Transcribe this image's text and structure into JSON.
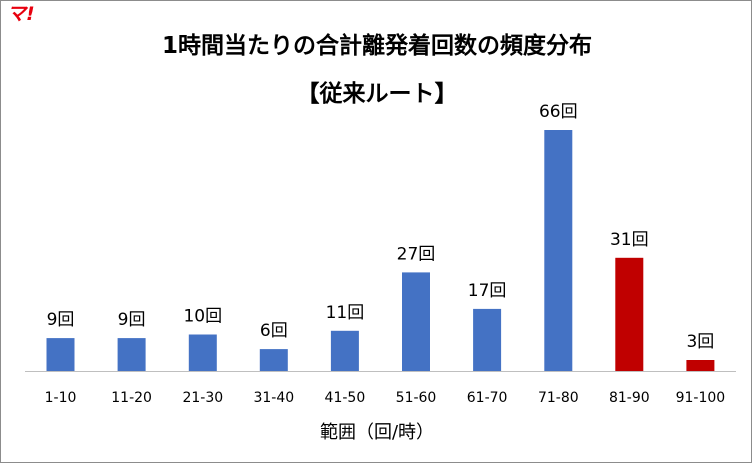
{
  "logo": {
    "text": "マ!",
    "color": "#e8000e"
  },
  "chart_data": {
    "type": "bar",
    "title": "1時間当たりの合計離発着回数の頻度分布",
    "subtitle": "【従来ルート】",
    "xlabel": "範囲（回/時）",
    "ylabel": "",
    "categories": [
      "1-10",
      "11-20",
      "21-30",
      "31-40",
      "41-50",
      "51-60",
      "61-70",
      "71-80",
      "81-90",
      "91-100"
    ],
    "values": [
      9,
      9,
      10,
      6,
      11,
      27,
      17,
      66,
      31,
      3
    ],
    "data_labels": [
      "9回",
      "9回",
      "10回",
      "6回",
      "11回",
      "27回",
      "17回",
      "66回",
      "31回",
      "3回"
    ],
    "ylim": [
      0,
      66
    ],
    "grid": false,
    "legend": "none",
    "colors": {
      "default": "#4472c4",
      "highlight": "#c00000",
      "highlight_categories": [
        "81-90",
        "91-100"
      ]
    }
  }
}
